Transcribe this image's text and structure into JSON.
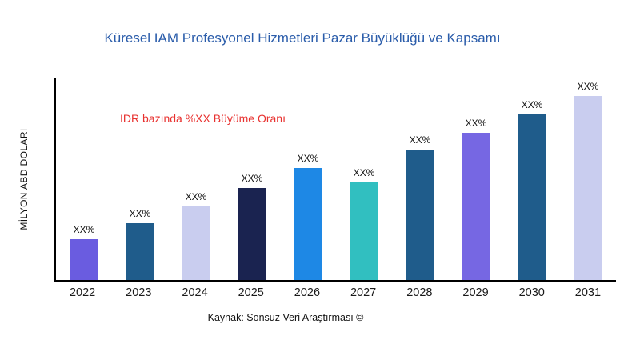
{
  "title": "Küresel IAM Profesyonel Hizmetleri Pazar Büyüklüğü ve Kapsamı",
  "ylabel": "MİLYON ABD DOLARI",
  "annotation": "IDR bazında %XX Büyüme Oranı",
  "source": "Kaynak: Sonsuz Veri Araştırması ©",
  "colors": {
    "title": "#2A5CAA",
    "annotation": "#E8312F",
    "axis": "#000000",
    "background": "#FFFFFF"
  },
  "chart_data": {
    "type": "bar",
    "title": "Küresel IAM Profesyonel Hizmetleri Pazar Büyüklüğü ve Kapsamı",
    "xlabel": "",
    "ylabel": "MİLYON ABD DOLARI",
    "categories": [
      "2022",
      "2023",
      "2024",
      "2025",
      "2026",
      "2027",
      "2028",
      "2029",
      "2030",
      "2031"
    ],
    "values": [
      22,
      31,
      40,
      50,
      61,
      53,
      71,
      80,
      90,
      100
    ],
    "bar_labels": [
      "XX%",
      "XX%",
      "XX%",
      "XX%",
      "XX%",
      "XX%",
      "XX%",
      "XX%",
      "XX%",
      "XX%"
    ],
    "bar_colors": [
      "#6A5CE0",
      "#1F5C8B",
      "#C9CDEF",
      "#1A2350",
      "#1E88E5",
      "#31BFC0",
      "#1F5C8B",
      "#7667E3",
      "#1F5C8B",
      "#C9CDEF"
    ],
    "ylim": [
      0,
      110
    ],
    "grid": false,
    "legend": false,
    "annotation": "IDR bazında %XX Büyüme Oranı",
    "source_caption": "Kaynak: Sonsuz Veri Araştırması ©"
  }
}
